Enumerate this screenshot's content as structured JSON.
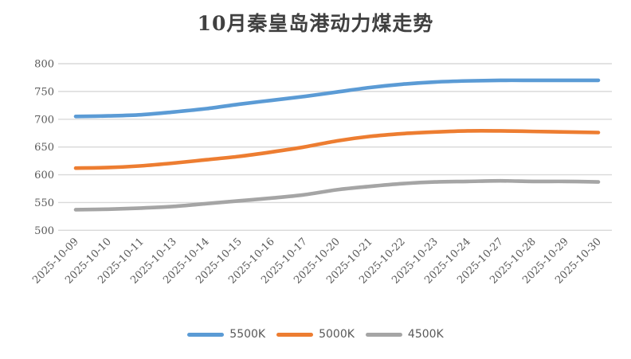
{
  "title": "10月秦皇岛港动力煤走势",
  "colors": {
    "background": "#FFFFFF",
    "title_text": "#404040",
    "axis_text": "#595959",
    "gridline": "#D9D9D9",
    "series_5500k": "#5B9BD5",
    "series_5000k": "#ED7D31",
    "series_4500k": "#A5A5A5"
  },
  "chart_data": {
    "type": "line",
    "title": "10月秦皇岛港动力煤走势",
    "smooth": true,
    "grid": "horizontal",
    "legend_position": "bottom",
    "xlabel": "",
    "ylabel": "",
    "ylim": [
      500,
      800
    ],
    "yticks": [
      500,
      550,
      600,
      650,
      700,
      750,
      800
    ],
    "categories": [
      "2025-10-09",
      "2025-10-10",
      "2025-10-11",
      "2025-10-13",
      "2025-10-14",
      "2025-10-15",
      "2025-10-16",
      "2025-10-17",
      "2025-10-20",
      "2025-10-21",
      "2025-10-22",
      "2025-10-23",
      "2025-10-24",
      "2025-10-27",
      "2025-10-28",
      "2025-10-29",
      "2025-10-30"
    ],
    "series": [
      {
        "name": "5500K",
        "color": "#5B9BD5",
        "values": [
          705,
          706,
          708,
          713,
          719,
          727,
          734,
          741,
          749,
          757,
          763,
          767,
          769,
          770,
          770,
          770,
          770
        ]
      },
      {
        "name": "5000K",
        "color": "#ED7D31",
        "values": [
          612,
          613,
          616,
          621,
          627,
          633,
          641,
          650,
          661,
          669,
          674,
          677,
          679,
          679,
          678,
          677,
          676
        ]
      },
      {
        "name": "4500K",
        "color": "#A5A5A5",
        "values": [
          537,
          538,
          540,
          543,
          548,
          553,
          558,
          564,
          573,
          579,
          584,
          587,
          588,
          589,
          588,
          588,
          587
        ]
      }
    ]
  }
}
